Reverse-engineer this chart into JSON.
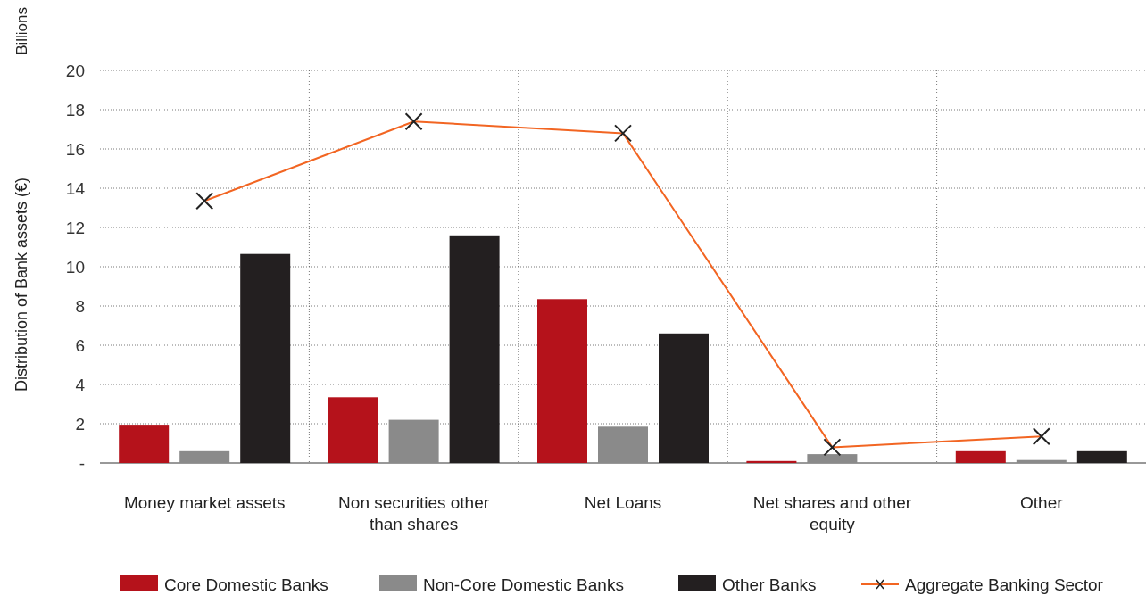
{
  "chart_data": {
    "type": "bar",
    "ylabel": "Distribution of Bank assets (€)",
    "annotations": [
      "Billions"
    ],
    "categories": [
      "Money market assets",
      "Non securities other than shares",
      "Net Loans",
      "Net shares and other equity",
      "Other"
    ],
    "series": [
      {
        "name": "Core Domestic Banks",
        "color": "#b5121b",
        "values": [
          1.95,
          3.35,
          8.35,
          0.1,
          0.6
        ]
      },
      {
        "name": "Non-Core Domestic Banks",
        "color": "#8a8a8a",
        "values": [
          0.6,
          2.2,
          1.85,
          0.45,
          0.15
        ]
      },
      {
        "name": "Other Banks",
        "color": "#231f20",
        "values": [
          10.65,
          11.6,
          6.6,
          null,
          0.6
        ]
      },
      {
        "name": "Aggregate Banking Sector",
        "type": "line",
        "color": "#f26522",
        "marker": "cross",
        "values": [
          13.35,
          17.4,
          16.8,
          0.8,
          1.35
        ]
      }
    ],
    "ylim": [
      0,
      20
    ],
    "yticks": [
      {
        "value": 0,
        "label": "-"
      },
      2,
      4,
      6,
      8,
      10,
      12,
      14,
      16,
      18,
      20
    ],
    "grid": true,
    "legend": "bottom"
  }
}
